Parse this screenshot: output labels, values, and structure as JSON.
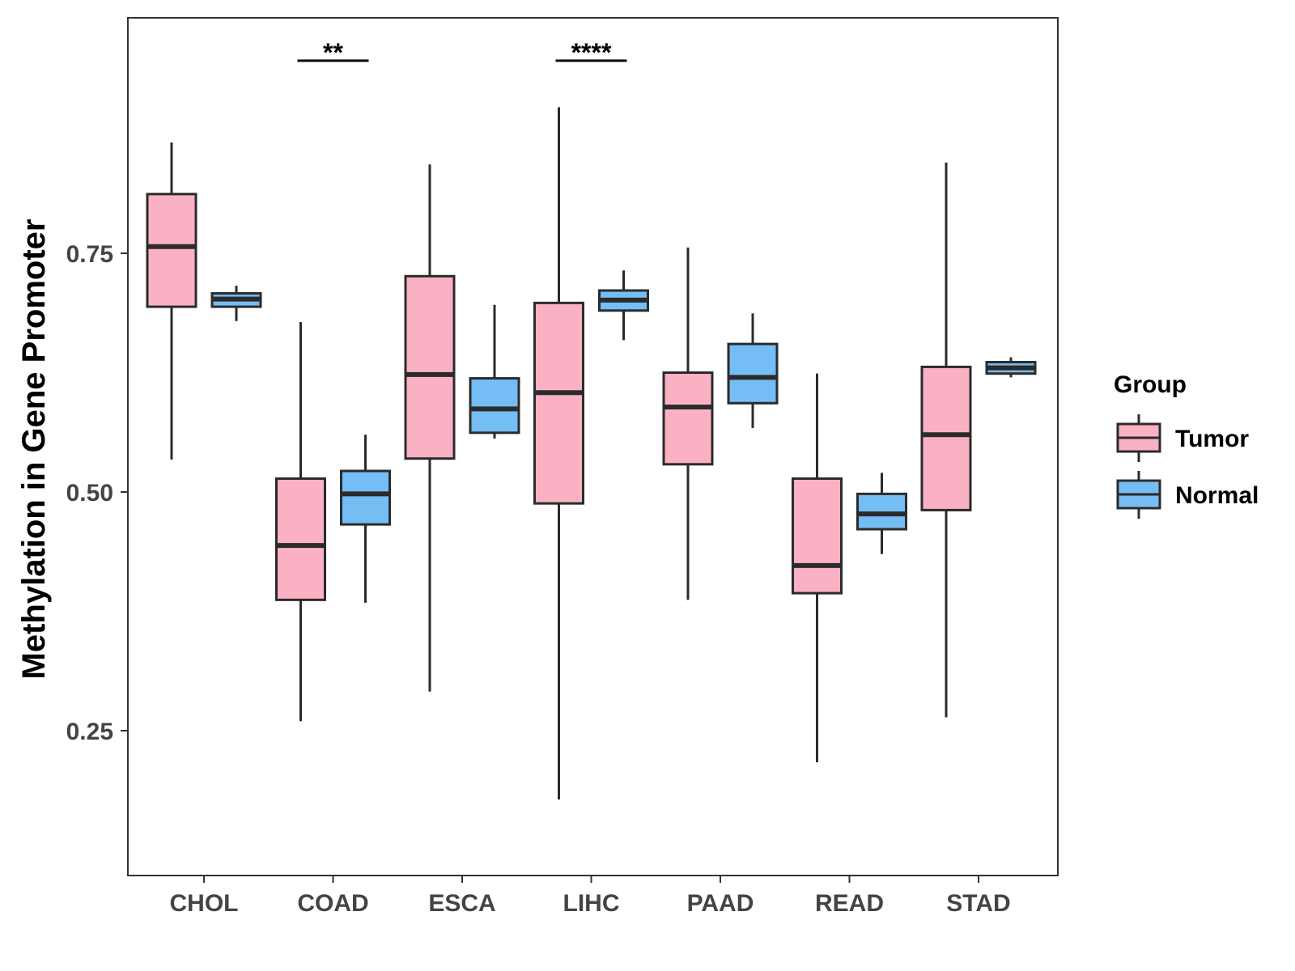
{
  "chart_data": {
    "type": "boxplot",
    "title": "",
    "xlabel": "",
    "ylabel": "Methylation in Gene Promoter",
    "ylim": [
      0.1,
      1.0
    ],
    "yticks": [
      "0.25",
      "0.50",
      "0.75"
    ],
    "categories": [
      "CHOL",
      "COAD",
      "ESCA",
      "LIHC",
      "PAAD",
      "READ",
      "STAD"
    ],
    "legend": {
      "title": "Group",
      "position": "right",
      "entries": [
        {
          "name": "Tumor",
          "color": "#FBB1C4"
        },
        {
          "name": "Normal",
          "color": "#75BDF5"
        }
      ]
    },
    "series": [
      {
        "name": "Tumor",
        "color": "#FBB1C4",
        "boxes": [
          {
            "category": "CHOL",
            "min": 0.534,
            "q1": 0.694,
            "median": 0.757,
            "q3": 0.812,
            "max": 0.866
          },
          {
            "category": "COAD",
            "min": 0.26,
            "q1": 0.387,
            "median": 0.444,
            "q3": 0.514,
            "max": 0.678
          },
          {
            "category": "ESCA",
            "min": 0.291,
            "q1": 0.535,
            "median": 0.623,
            "q3": 0.726,
            "max": 0.843
          },
          {
            "category": "LIHC",
            "min": 0.178,
            "q1": 0.488,
            "median": 0.604,
            "q3": 0.698,
            "max": 0.903
          },
          {
            "category": "PAAD",
            "min": 0.387,
            "q1": 0.529,
            "median": 0.589,
            "q3": 0.625,
            "max": 0.756
          },
          {
            "category": "READ",
            "min": 0.217,
            "q1": 0.394,
            "median": 0.423,
            "q3": 0.514,
            "max": 0.624
          },
          {
            "category": "STAD",
            "min": 0.264,
            "q1": 0.481,
            "median": 0.56,
            "q3": 0.631,
            "max": 0.845
          }
        ]
      },
      {
        "name": "Normal",
        "color": "#75BDF5",
        "boxes": [
          {
            "category": "CHOL",
            "min": 0.679,
            "q1": 0.694,
            "median": 0.702,
            "q3": 0.708,
            "max": 0.716
          },
          {
            "category": "COAD",
            "min": 0.384,
            "q1": 0.466,
            "median": 0.498,
            "q3": 0.522,
            "max": 0.56
          },
          {
            "category": "ESCA",
            "min": 0.556,
            "q1": 0.562,
            "median": 0.587,
            "q3": 0.619,
            "max": 0.696
          },
          {
            "category": "LIHC",
            "min": 0.659,
            "q1": 0.69,
            "median": 0.701,
            "q3": 0.711,
            "max": 0.732
          },
          {
            "category": "PAAD",
            "min": 0.567,
            "q1": 0.593,
            "median": 0.62,
            "q3": 0.655,
            "max": 0.687
          },
          {
            "category": "READ",
            "min": 0.435,
            "q1": 0.461,
            "median": 0.477,
            "q3": 0.498,
            "max": 0.52
          },
          {
            "category": "STAD",
            "min": 0.62,
            "q1": 0.624,
            "median": 0.63,
            "q3": 0.636,
            "max": 0.641
          }
        ]
      }
    ],
    "annotations": [
      {
        "category": "COAD",
        "label": "**"
      },
      {
        "category": "LIHC",
        "label": "****"
      }
    ]
  }
}
